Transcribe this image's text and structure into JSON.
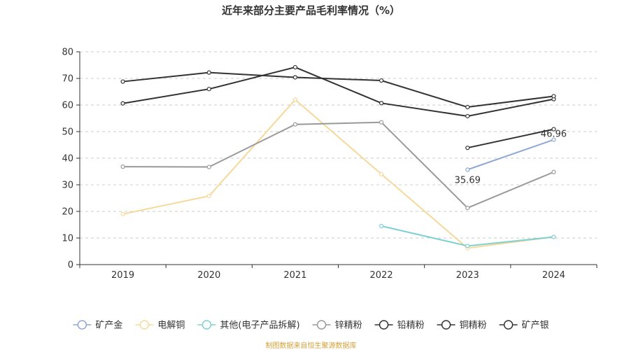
{
  "chart_data": {
    "type": "line",
    "title": "近年来部分主要产品毛利率情况（%）",
    "x": [
      "2019",
      "2020",
      "2021",
      "2022",
      "2023",
      "2024"
    ],
    "ylim": [
      0,
      80
    ],
    "yticks": [
      0,
      10,
      20,
      30,
      40,
      50,
      60,
      70,
      80
    ],
    "grid": true,
    "legend_position": "bottom",
    "series": [
      {
        "name": "矿产金",
        "color": "#8fa8d8",
        "values": [
          null,
          null,
          null,
          null,
          35.69,
          46.96
        ],
        "labels": [
          null,
          null,
          null,
          null,
          "35.69",
          "46.96"
        ]
      },
      {
        "name": "电解铜",
        "color": "#f6d99a",
        "values": [
          19.0,
          25.8,
          62.0,
          34.0,
          6.2,
          10.4
        ]
      },
      {
        "name": "其他(电子产品拆解)",
        "color": "#7fd0d3",
        "values": [
          null,
          null,
          null,
          14.5,
          7.0,
          10.4
        ]
      },
      {
        "name": "锌精粉",
        "color": "#999999",
        "values": [
          36.8,
          36.7,
          52.7,
          53.5,
          21.3,
          34.8
        ]
      },
      {
        "name": "铅精粉",
        "color": "#333333",
        "values": [
          60.6,
          66.0,
          74.2,
          60.7,
          55.8,
          62.2
        ]
      },
      {
        "name": "铜精粉",
        "color": "#333333",
        "values": [
          68.8,
          72.2,
          70.4,
          69.2,
          59.2,
          63.3
        ]
      },
      {
        "name": "矿产银",
        "color": "#333333",
        "values": [
          null,
          null,
          null,
          null,
          43.9,
          50.9
        ]
      }
    ]
  },
  "source_text": "制图数据来自恒生聚源数据库"
}
